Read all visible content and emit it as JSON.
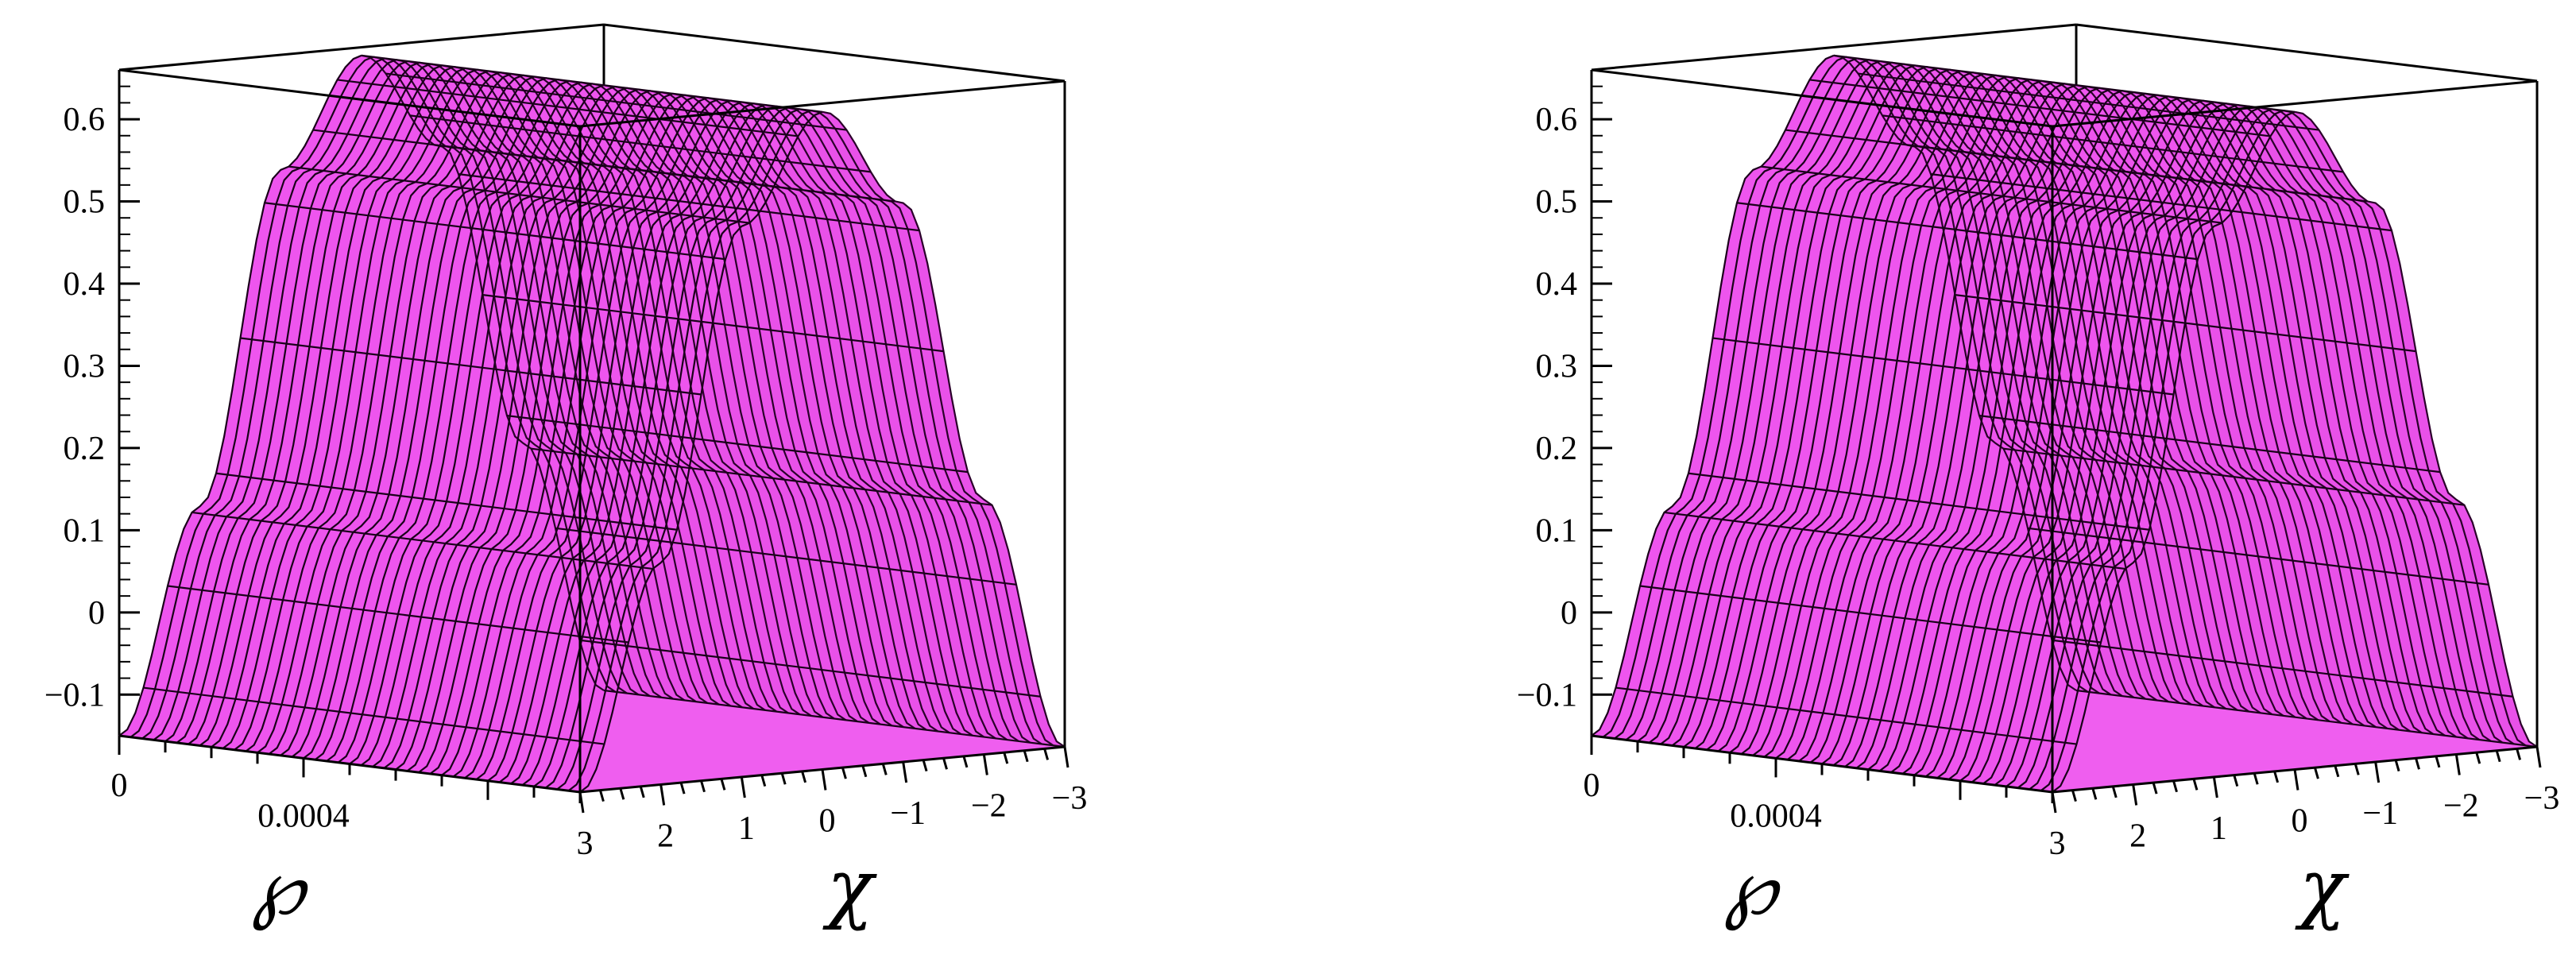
{
  "chart_data": [
    {
      "type": "surface3d",
      "title": "",
      "xlabel": "℘",
      "ylabel": "χ",
      "zlabel": "",
      "x_ticks": [
        "0",
        "0.0004"
      ],
      "y_ticks": [
        "3",
        "2",
        "1",
        "0",
        "−1",
        "−2",
        "−3"
      ],
      "z_ticks": [
        "0.6",
        "0.5",
        "0.4",
        "0.3",
        "0.2",
        "0.1",
        "0",
        "−0.1"
      ],
      "xlim": [
        0,
        0.001
      ],
      "ylim": [
        -3,
        3
      ],
      "zlim": [
        -0.15,
        0.66
      ],
      "profile_chi": [
        3,
        2,
        1,
        0,
        -1,
        -2,
        -3
      ],
      "profile_value": [
        -0.15,
        0.12,
        0.52,
        0.65,
        0.53,
        0.16,
        -0.15
      ],
      "surface_color": "#ee55ee",
      "shadow_color": "#8a0a8a",
      "mesh_color": "#1a001a"
    },
    {
      "type": "surface3d",
      "title": "",
      "xlabel": "℘",
      "ylabel": "χ",
      "zlabel": "",
      "x_ticks": [
        "0",
        "0.0004"
      ],
      "y_ticks": [
        "3",
        "2",
        "1",
        "0",
        "−1",
        "−2",
        "−3"
      ],
      "z_ticks": [
        "0.6",
        "0.5",
        "0.4",
        "0.3",
        "0.2",
        "0.1",
        "0",
        "−0.1"
      ],
      "xlim": [
        0,
        0.001
      ],
      "ylim": [
        -3,
        3
      ],
      "zlim": [
        -0.15,
        0.66
      ],
      "profile_chi": [
        3,
        2,
        1,
        0,
        -1,
        -2,
        -3
      ],
      "profile_value": [
        -0.15,
        0.12,
        0.52,
        0.65,
        0.53,
        0.16,
        -0.15
      ],
      "surface_color": "#ee55ee",
      "shadow_color": "#8a0a8a",
      "mesh_color": "#1a001a"
    }
  ]
}
